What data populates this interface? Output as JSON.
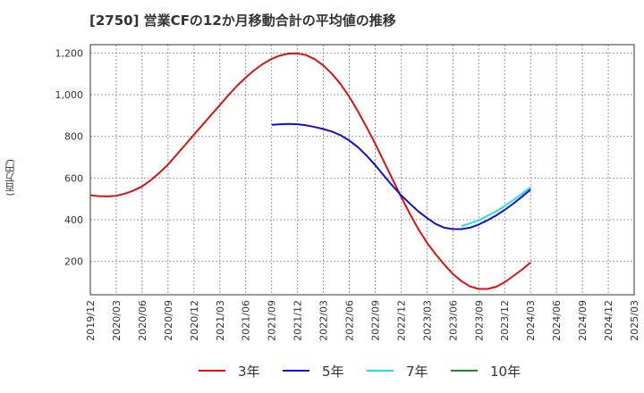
{
  "chart_data": {
    "type": "line",
    "title": "[2750]  営業CFの12か月移動合計の平均値の推移",
    "ylabel": "(百万円)",
    "xlabel": "",
    "ylim": [
      40,
      1240
    ],
    "yticks": [
      200,
      400,
      600,
      800,
      1000,
      1200
    ],
    "ytick_labels": [
      "200",
      "400",
      "600",
      "800",
      "1,000",
      "1,200"
    ],
    "x_range": [
      "2019-12",
      "2025-03"
    ],
    "x_tick_labels": [
      "2019/12",
      "2020/03",
      "2020/06",
      "2020/09",
      "2020/12",
      "2021/03",
      "2021/06",
      "2021/09",
      "2021/12",
      "2022/03",
      "2022/06",
      "2022/09",
      "2022/12",
      "2023/03",
      "2023/06",
      "2023/09",
      "2023/12",
      "2024/03",
      "2024/06",
      "2024/09",
      "2024/12",
      "2025/03"
    ],
    "grid": true,
    "legend_position": "bottom",
    "series": [
      {
        "name": "3年",
        "color": "#dd1111",
        "x": [
          "2019-12",
          "2020-01",
          "2020-02",
          "2020-03",
          "2020-04",
          "2020-05",
          "2020-06",
          "2020-07",
          "2020-08",
          "2020-09",
          "2020-10",
          "2020-11",
          "2020-12",
          "2021-01",
          "2021-02",
          "2021-03",
          "2021-04",
          "2021-05",
          "2021-06",
          "2021-07",
          "2021-08",
          "2021-09",
          "2021-10",
          "2021-11",
          "2021-12",
          "2022-01",
          "2022-02",
          "2022-03",
          "2022-04",
          "2022-05",
          "2022-06",
          "2022-07",
          "2022-08",
          "2022-09",
          "2022-10",
          "2022-11",
          "2022-12",
          "2023-01",
          "2023-02",
          "2023-03",
          "2023-04",
          "2023-05",
          "2023-06",
          "2023-07",
          "2023-08",
          "2023-09",
          "2023-10",
          "2023-11",
          "2023-12",
          "2024-01",
          "2024-02",
          "2024-03"
        ],
        "values": [
          518,
          513,
          512,
          515,
          525,
          540,
          560,
          590,
          625,
          665,
          712,
          760,
          808,
          855,
          903,
          950,
          998,
          1043,
          1082,
          1118,
          1148,
          1172,
          1188,
          1197,
          1198,
          1190,
          1170,
          1140,
          1100,
          1050,
          990,
          920,
          845,
          765,
          680,
          595,
          510,
          430,
          355,
          290,
          235,
          185,
          140,
          105,
          80,
          68,
          68,
          78,
          100,
          130,
          160,
          195
        ]
      },
      {
        "name": "5年",
        "color": "#1111cc",
        "x": [
          "2021-09",
          "2021-10",
          "2021-11",
          "2021-12",
          "2022-01",
          "2022-02",
          "2022-03",
          "2022-04",
          "2022-05",
          "2022-06",
          "2022-07",
          "2022-08",
          "2022-09",
          "2022-10",
          "2022-11",
          "2022-12",
          "2023-01",
          "2023-02",
          "2023-03",
          "2023-04",
          "2023-05",
          "2023-06",
          "2023-07",
          "2023-08",
          "2023-09",
          "2023-10",
          "2023-11",
          "2023-12",
          "2024-01",
          "2024-02",
          "2024-03"
        ],
        "values": [
          855,
          858,
          860,
          858,
          853,
          845,
          835,
          823,
          805,
          780,
          748,
          708,
          662,
          612,
          563,
          518,
          478,
          440,
          408,
          380,
          362,
          355,
          355,
          362,
          377,
          397,
          420,
          447,
          477,
          510,
          545
        ]
      },
      {
        "name": "7年",
        "color": "#22ddee",
        "x": [
          "2023-07",
          "2023-08",
          "2023-09",
          "2023-10",
          "2023-11",
          "2023-12",
          "2024-01",
          "2024-02",
          "2024-03"
        ],
        "values": [
          370,
          382,
          398,
          418,
          440,
          466,
          494,
          524,
          556
        ]
      },
      {
        "name": "10年",
        "color": "#228822",
        "x": [],
        "values": []
      }
    ]
  }
}
